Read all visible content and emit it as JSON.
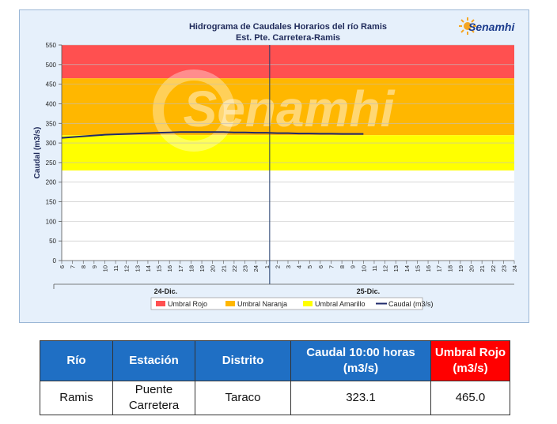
{
  "chart_data": {
    "type": "line",
    "title": "Hidrograma de Caudales Horarios del río Ramis",
    "subtitle": "Est. Pte. Carretera-Ramis",
    "ylabel": "Caudal  (m3/s)",
    "ylim": [
      0,
      550
    ],
    "yticks": [
      0,
      50,
      100,
      150,
      200,
      250,
      300,
      350,
      400,
      450,
      500,
      550
    ],
    "xticks": [
      "6",
      "7",
      "8",
      "9",
      "10",
      "11",
      "12",
      "13",
      "14",
      "15",
      "16",
      "17",
      "18",
      "19",
      "20",
      "21",
      "22",
      "23",
      "24",
      "1",
      "2",
      "3",
      "4",
      "5",
      "6",
      "7",
      "8",
      "9",
      "10",
      "11",
      "12",
      "13",
      "14",
      "15",
      "16",
      "17",
      "18",
      "19",
      "20",
      "21",
      "22",
      "23",
      "24"
    ],
    "day_labels": [
      "24-Dic.",
      "25-Dic."
    ],
    "watermark": "Senamhi",
    "thresholds": {
      "rojo": 465,
      "naranja": 320,
      "amarillo": 230,
      "top": 550
    },
    "series": [
      {
        "name": "Caudal (m3/s)",
        "color": "#1f2a6b",
        "x_index": [
          0,
          1,
          2,
          3,
          4,
          5,
          6,
          7,
          8,
          9,
          10,
          11,
          12,
          13,
          14,
          15,
          16,
          17,
          18,
          19,
          20,
          21,
          22,
          23,
          24,
          25,
          26,
          27,
          28
        ],
        "values": [
          313,
          315,
          317,
          319,
          321,
          322,
          323,
          324,
          325,
          326,
          327,
          328,
          328,
          328,
          328,
          328,
          327,
          327,
          326,
          326,
          325,
          325,
          324,
          324,
          323.5,
          323.5,
          323,
          323,
          323.1
        ]
      }
    ],
    "legend": [
      {
        "name": "Umbral Rojo",
        "color": "#ff5050"
      },
      {
        "name": "Umbral Naranja",
        "color": "#ffb700"
      },
      {
        "name": "Umbral Amarillo",
        "color": "#ffff00"
      },
      {
        "name": "Caudal (m3/s)",
        "color": "#1f2a6b"
      }
    ],
    "colors": {
      "rojo": "#ff5050",
      "naranja": "#ffb700",
      "amarillo": "#ffff00",
      "grid": "#bfbfbf"
    }
  },
  "logo": {
    "text": "Senamhi"
  },
  "table": {
    "headers": [
      "Río",
      "Estación",
      "Distrito",
      "Caudal  10:00 horas (m3/s)",
      "Umbral Rojo (m3/s)"
    ],
    "row": [
      "Ramis",
      "Puente Carretera",
      "Taraco",
      "323.1",
      "465.0"
    ]
  }
}
